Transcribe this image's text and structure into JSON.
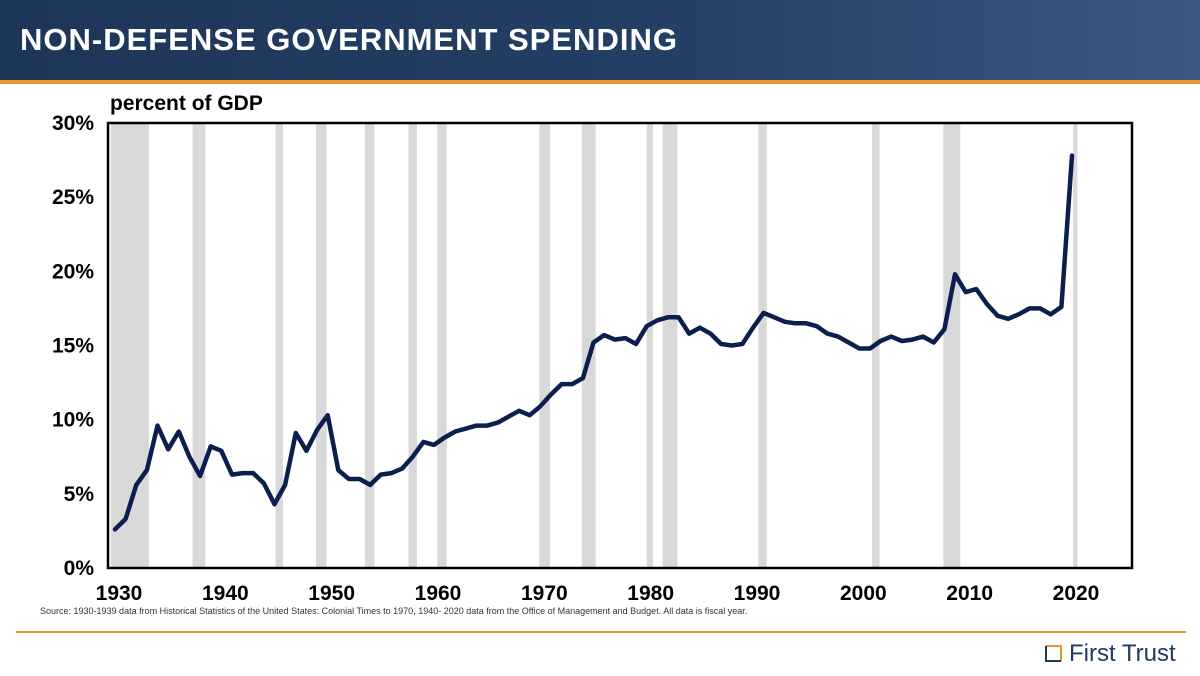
{
  "header": {
    "title": "NON-DEFENSE GOVERNMENT SPENDING"
  },
  "source": "Source: 1930-1939 data from Historical Statistics of the United States: Colonial Times to 1970, 1940- 2020 data from the Office of Management and Budget. All data is fiscal year.",
  "logo": {
    "text": "First Trust"
  },
  "colors": {
    "line": "#0b1f4f",
    "recession": "#d9d9d9",
    "accent": "#e8962a",
    "header": "#1d3557"
  },
  "chart_data": {
    "type": "line",
    "title": "",
    "ylabel": "percent of GDP",
    "xlabel": "",
    "xlim": [
      1930,
      2030
    ],
    "ylim": [
      0,
      30
    ],
    "x_ticks": [
      {
        "value": 1930,
        "label": "1930"
      },
      {
        "value": 1940,
        "label": "1940"
      },
      {
        "value": 1950,
        "label": "1950"
      },
      {
        "value": 1960,
        "label": "1960"
      },
      {
        "value": 1970,
        "label": "1970"
      },
      {
        "value": 1980,
        "label": "1980"
      },
      {
        "value": 1990,
        "label": "1990"
      },
      {
        "value": 2000,
        "label": "2000"
      },
      {
        "value": 2010,
        "label": "2010"
      },
      {
        "value": 2020,
        "label": "2020"
      }
    ],
    "y_ticks": [
      {
        "value": 0,
        "label": "0%"
      },
      {
        "value": 5,
        "label": "5%"
      },
      {
        "value": 10,
        "label": "10%"
      },
      {
        "value": 15,
        "label": "15%"
      },
      {
        "value": 20,
        "label": "20%"
      },
      {
        "value": 25,
        "label": "25%"
      },
      {
        "value": 30,
        "label": "30%"
      }
    ],
    "grid": false,
    "recessions": [
      [
        1929.6,
        1933.2
      ],
      [
        1937.3,
        1938.5
      ],
      [
        1945.1,
        1945.8
      ],
      [
        1948.9,
        1949.9
      ],
      [
        1953.5,
        1954.4
      ],
      [
        1957.6,
        1958.4
      ],
      [
        1960.3,
        1961.2
      ],
      [
        1969.9,
        1970.9
      ],
      [
        1973.9,
        1975.2
      ],
      [
        1980.0,
        1980.6
      ],
      [
        1981.5,
        1982.9
      ],
      [
        1990.5,
        1991.3
      ],
      [
        2001.2,
        2001.9
      ],
      [
        2007.9,
        2009.5
      ],
      [
        2020.1,
        2020.5
      ]
    ],
    "series": [
      {
        "name": "",
        "x": [
          1930,
          1931,
          1932,
          1933,
          1934,
          1935,
          1936,
          1937,
          1938,
          1939,
          1940,
          1941,
          1942,
          1943,
          1944,
          1945,
          1946,
          1947,
          1948,
          1949,
          1950,
          1951,
          1952,
          1953,
          1954,
          1955,
          1956,
          1957,
          1958,
          1959,
          1960,
          1961,
          1962,
          1963,
          1964,
          1965,
          1966,
          1967,
          1968,
          1969,
          1970,
          1971,
          1972,
          1973,
          1974,
          1975,
          1976,
          1977,
          1978,
          1979,
          1980,
          1981,
          1982,
          1983,
          1984,
          1985,
          1986,
          1987,
          1988,
          1989,
          1990,
          1991,
          1992,
          1993,
          1994,
          1995,
          1996,
          1997,
          1998,
          1999,
          2000,
          2001,
          2002,
          2003,
          2004,
          2005,
          2006,
          2007,
          2008,
          2009,
          2010,
          2011,
          2012,
          2013,
          2014,
          2015,
          2016,
          2017,
          2018,
          2019,
          2020
        ],
        "values": [
          2.6,
          3.3,
          5.6,
          6.6,
          9.6,
          8.0,
          9.2,
          7.5,
          6.2,
          8.2,
          7.9,
          6.3,
          6.4,
          6.4,
          5.7,
          4.3,
          5.6,
          9.1,
          7.9,
          9.3,
          10.3,
          6.6,
          6.0,
          6.0,
          5.6,
          6.3,
          6.4,
          6.7,
          7.5,
          8.5,
          8.3,
          8.8,
          9.2,
          9.4,
          9.6,
          9.6,
          9.8,
          10.2,
          10.6,
          10.3,
          10.9,
          11.7,
          12.4,
          12.4,
          12.8,
          15.2,
          15.7,
          15.4,
          15.5,
          15.1,
          16.3,
          16.7,
          16.9,
          16.9,
          15.8,
          16.2,
          15.8,
          15.1,
          15.0,
          15.1,
          16.2,
          17.2,
          16.9,
          16.6,
          16.5,
          16.5,
          16.3,
          15.8,
          15.6,
          15.2,
          14.8,
          14.8,
          15.3,
          15.6,
          15.3,
          15.4,
          15.6,
          15.2,
          16.1,
          19.8,
          18.6,
          18.8,
          17.8,
          17.0,
          16.8,
          17.1,
          17.5,
          17.5,
          17.1,
          17.6,
          27.8
        ]
      }
    ]
  }
}
